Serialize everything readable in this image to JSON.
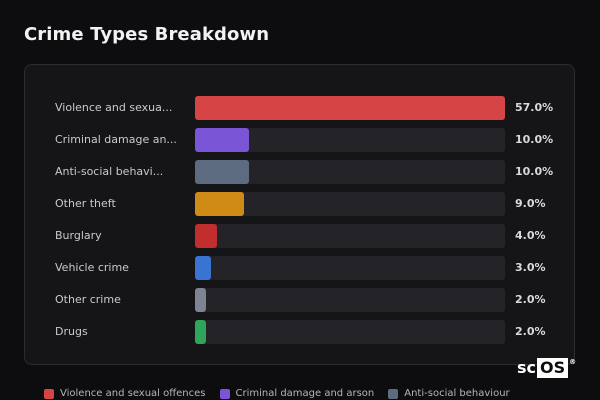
{
  "header": {
    "title": "Crime Types Breakdown"
  },
  "chart_data": {
    "type": "bar",
    "orientation": "horizontal",
    "title": "Crime Types Breakdown",
    "categories": [
      "Violence and sexual offences",
      "Criminal damage and arson",
      "Anti-social behaviour",
      "Other theft",
      "Burglary",
      "Vehicle crime",
      "Other crime",
      "Drugs"
    ],
    "display_labels": [
      "Violence and sexua...",
      "Criminal damage an...",
      "Anti-social behavi...",
      "Other theft",
      "Burglary",
      "Vehicle crime",
      "Other crime",
      "Drugs"
    ],
    "values": [
      57.0,
      10.0,
      10.0,
      9.0,
      4.0,
      3.0,
      2.0,
      2.0
    ],
    "value_labels": [
      "57.0%",
      "10.0%",
      "10.0%",
      "9.0%",
      "4.0%",
      "3.0%",
      "2.0%",
      "2.0%"
    ],
    "colors": [
      "#d64545",
      "#7a55d6",
      "#5d6b80",
      "#d08b17",
      "#c22e2e",
      "#3a74d2",
      "#7d8593",
      "#2ea55a"
    ],
    "xlim": [
      0,
      57
    ],
    "legend_position": "bottom"
  },
  "legend": {
    "items": [
      {
        "label": "Violence and sexual offences",
        "color": "#d64545"
      },
      {
        "label": "Criminal damage and arson",
        "color": "#7a55d6"
      },
      {
        "label": "Anti-social behaviour",
        "color": "#5d6b80"
      }
    ]
  },
  "logo": {
    "text": "sc",
    "box_text": "OS",
    "reg": "®"
  }
}
